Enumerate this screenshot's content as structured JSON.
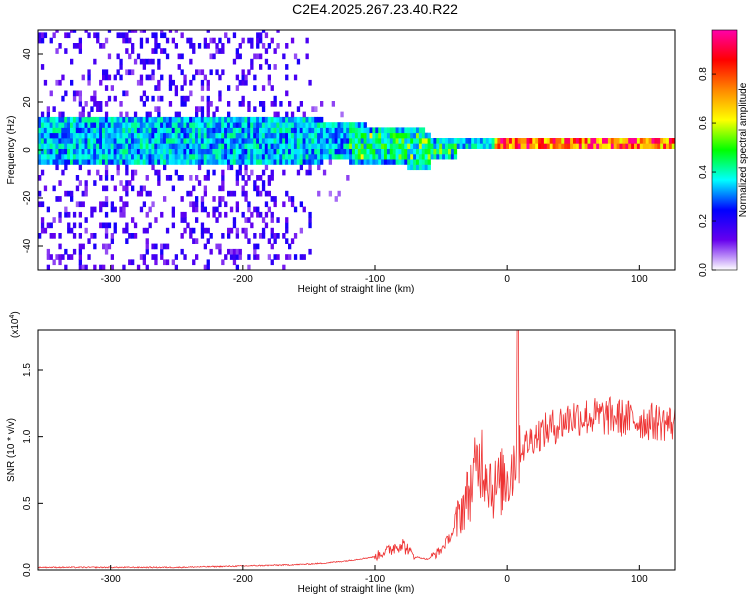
{
  "title": "C2E4.2025.267.23.40.R22",
  "chart_data": [
    {
      "type": "heatmap",
      "xlabel": "Height of straight line (km)",
      "ylabel": "Frequency (Hz)",
      "xlim": [
        -355,
        127
      ],
      "ylim": [
        -50,
        50
      ],
      "xticks": [
        -300,
        -200,
        -100,
        0,
        100
      ],
      "yticks": [
        -40,
        -20,
        0,
        20,
        40
      ],
      "colorbar": {
        "label": "Normalized spectral amplitude",
        "range": [
          0,
          0.98
        ],
        "ticks": [
          "0.0",
          "0.2",
          "0.4",
          "0.6",
          "0.8"
        ],
        "colormap": [
          "#ffffff",
          "#6600ee",
          "#0000ff",
          "#00ffff",
          "#00ff00",
          "#ffff00",
          "#ff8800",
          "#ff0000",
          "#ff00aa"
        ]
      }
    },
    {
      "type": "line",
      "xlabel": "Height of straight line (km)",
      "ylabel": "SNR (10 * v/v)",
      "yscale_label": "(x10",
      "yscale_exp": "4",
      "xlim": [
        -355,
        127
      ],
      "ylim": [
        0,
        1.8
      ],
      "xticks": [
        -300,
        -200,
        -100,
        0,
        100
      ],
      "yticks": [
        "0.0",
        "0.5",
        "1.0",
        "1.5"
      ],
      "color": "#ee3333",
      "series": [
        {
          "x": [
            -355,
            -300,
            -250,
            -200,
            -160,
            -140,
            -120,
            -100,
            -90,
            -80,
            -70,
            -60,
            -50,
            -40,
            -35,
            -30,
            -25,
            -20,
            -15,
            -10,
            -5,
            0,
            5,
            8,
            10,
            15,
            20,
            30,
            40,
            50,
            60,
            80,
            100,
            127
          ],
          "values": [
            0.02,
            0.02,
            0.02,
            0.03,
            0.04,
            0.05,
            0.07,
            0.1,
            0.15,
            0.2,
            0.1,
            0.08,
            0.15,
            0.3,
            0.45,
            0.55,
            0.7,
            0.85,
            0.75,
            0.6,
            0.65,
            0.7,
            0.8,
            1.1,
            0.9,
            0.95,
            1.0,
            1.05,
            1.1,
            1.15,
            1.15,
            1.15,
            1.12,
            1.1
          ]
        }
      ]
    }
  ]
}
